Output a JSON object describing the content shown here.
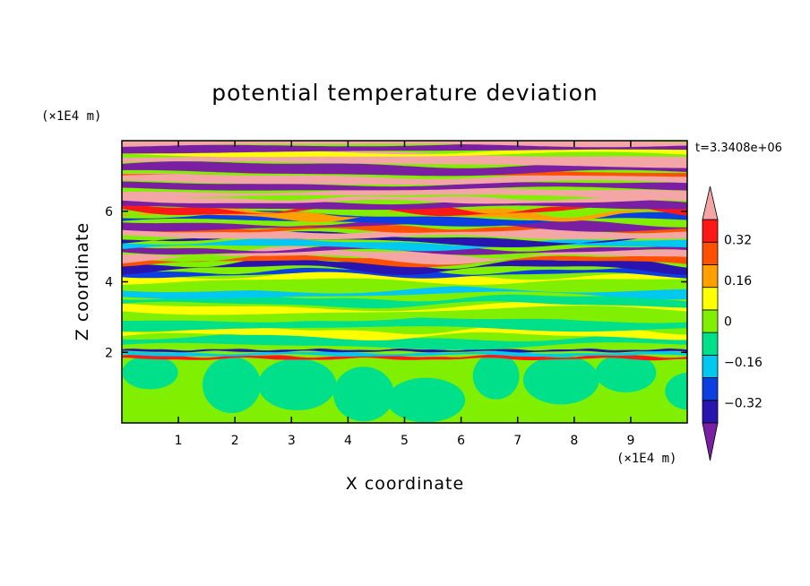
{
  "chart_data": {
    "type": "heatmap",
    "title": "potential temperature deviation",
    "xlabel": "X coordinate",
    "ylabel": "Z coordinate",
    "x_unit": "(×1E4 m)",
    "y_unit": "(×1E4 m)",
    "time_annotation": "t=3.3408e+06",
    "xlim": [
      0,
      10
    ],
    "ylim": [
      0,
      8
    ],
    "x_ticks": [
      1,
      2,
      3,
      4,
      5,
      6,
      7,
      8,
      9
    ],
    "x_tick_labels": [
      "1",
      "2",
      "3",
      "4",
      "5",
      "6",
      "7",
      "8",
      "9"
    ],
    "y_ticks": [
      2,
      4,
      6
    ],
    "y_tick_labels": [
      "2",
      "4",
      "6"
    ],
    "colorbar": {
      "levels": [
        -0.4,
        -0.32,
        -0.24,
        -0.16,
        -0.08,
        0,
        0.08,
        0.16,
        0.24,
        0.32,
        0.4
      ],
      "tick_values": [
        -0.32,
        -0.16,
        0,
        0.16,
        0.32
      ],
      "tick_labels": [
        "−0.32",
        "−0.16",
        "0",
        "0.16",
        "0.32"
      ],
      "colors": [
        "#7b1fa2",
        "#2a14b0",
        "#0d3fe0",
        "#00c8f0",
        "#00e08a",
        "#80f000",
        "#ffff00",
        "#ffa000",
        "#ff5000",
        "#ff1818",
        "#f4a6a6"
      ],
      "extend": "both"
    },
    "field_description_bands": [
      {
        "z_range": [
          0,
          1.9
        ],
        "dominant_levels": [
          0,
          0.08
        ]
      },
      {
        "z_range": [
          1.9,
          4.3
        ],
        "dominant_levels": [
          -0.08,
          0,
          0.08,
          0.16
        ]
      },
      {
        "z_range": [
          4.3,
          6.4
        ],
        "dominant_levels": [
          -0.4,
          -0.32,
          0.24,
          0.32,
          0.4
        ]
      },
      {
        "z_range": [
          6.4,
          8
        ],
        "dominant_levels": [
          -0.4,
          0.4
        ]
      }
    ]
  }
}
